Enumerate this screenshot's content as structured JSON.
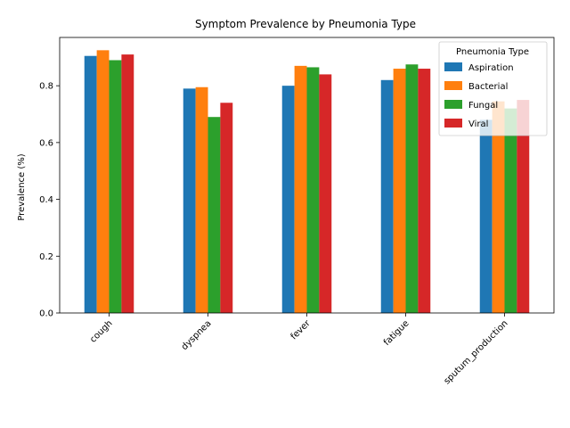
{
  "chart_data": {
    "type": "bar",
    "title": "Symptom Prevalence by Pneumonia Type",
    "xlabel": "",
    "ylabel": "Prevalence (%)",
    "ylim": [
      0,
      0.97
    ],
    "yticks": [
      "0.0",
      "0.2",
      "0.4",
      "0.6",
      "0.8"
    ],
    "categories": [
      "cough",
      "dyspnea",
      "fever",
      "fatigue",
      "sputum_production"
    ],
    "legend": {
      "title": "Pneumonia Type",
      "placement": "top-right"
    },
    "series": [
      {
        "name": "Aspiration",
        "color": "#1f77b4",
        "values": [
          0.905,
          0.79,
          0.8,
          0.82,
          0.68
        ]
      },
      {
        "name": "Bacterial",
        "color": "#ff7f0e",
        "values": [
          0.925,
          0.795,
          0.87,
          0.86,
          0.745
        ]
      },
      {
        "name": "Fungal",
        "color": "#2ca02c",
        "values": [
          0.89,
          0.69,
          0.865,
          0.875,
          0.72
        ]
      },
      {
        "name": "Viral",
        "color": "#d62728",
        "values": [
          0.91,
          0.74,
          0.84,
          0.86,
          0.75
        ]
      }
    ]
  }
}
